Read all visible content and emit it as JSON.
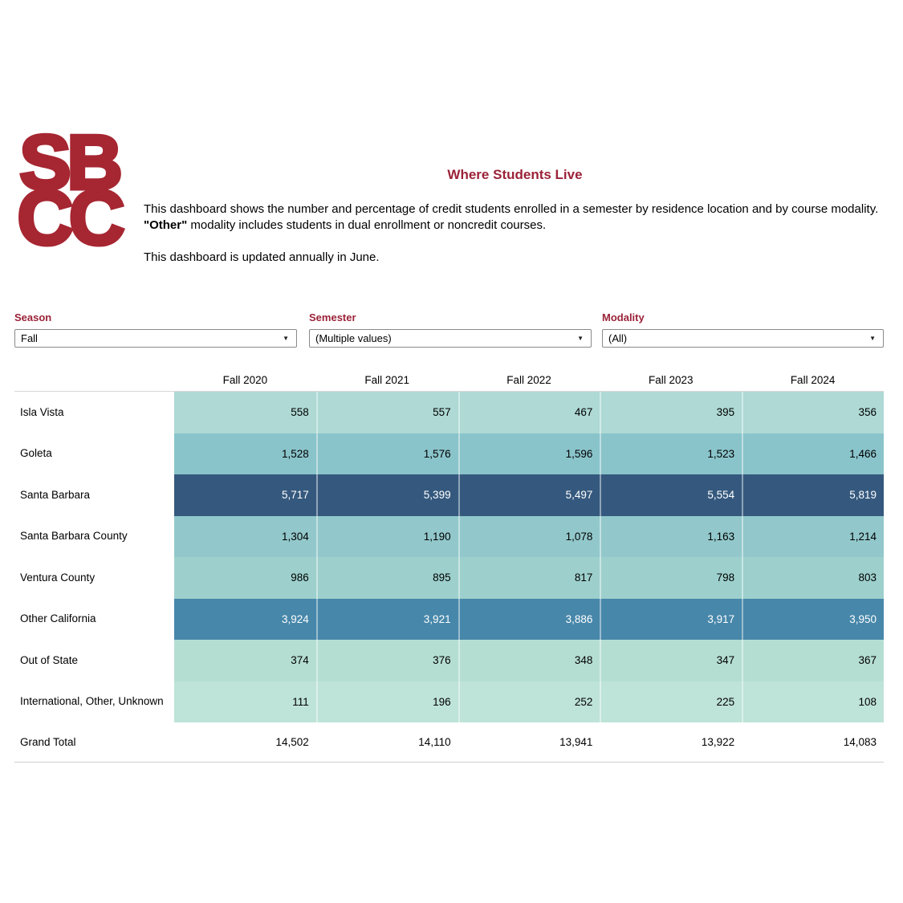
{
  "page": {
    "title": "Where Students Live"
  },
  "logo": {
    "line1": "SB",
    "line2": "CC",
    "color": "#a62631"
  },
  "description": {
    "p1_before": "This dashboard shows the number and percentage of credit students enrolled in a semester by residence location and by course modality.  ",
    "p1_bold": "\"Other\"",
    "p1_after": " modality includes students in dual enrollment or noncredit courses.",
    "p2": "This dashboard is updated annually in June."
  },
  "filters": {
    "season": {
      "label": "Season",
      "value": "Fall"
    },
    "semester": {
      "label": "Semester",
      "value": "(Multiple values)"
    },
    "modality": {
      "label": "Modality",
      "value": "(All)"
    },
    "dropdown_arrow": "▼"
  },
  "table": {
    "columns": [
      "Fall 2020",
      "Fall 2021",
      "Fall 2022",
      "Fall 2023",
      "Fall 2024"
    ],
    "rows": [
      {
        "label": "Isla Vista",
        "values": [
          "558",
          "557",
          "467",
          "395",
          "356"
        ],
        "style": "background-color:#aed9d5;color:#000000"
      },
      {
        "label": "Goleta",
        "values": [
          "1,528",
          "1,576",
          "1,596",
          "1,523",
          "1,466"
        ],
        "style": "background-color:#8ac4cb;color:#000000"
      },
      {
        "label": "Santa Barbara",
        "values": [
          "5,717",
          "5,399",
          "5,497",
          "5,554",
          "5,819"
        ],
        "style": "background-color:#35597e;color:#ffffff"
      },
      {
        "label": "Santa Barbara County",
        "values": [
          "1,304",
          "1,190",
          "1,078",
          "1,163",
          "1,214"
        ],
        "style": "background-color:#92c8cb;color:#000000"
      },
      {
        "label": "Ventura County",
        "values": [
          "986",
          "895",
          "817",
          "798",
          "803"
        ],
        "style": "background-color:#9dd0cd;color:#000000"
      },
      {
        "label": "Other California",
        "values": [
          "3,924",
          "3,921",
          "3,886",
          "3,917",
          "3,950"
        ],
        "style": "background-color:#4787aa;color:#ffffff"
      },
      {
        "label": "Out of State",
        "values": [
          "374",
          "376",
          "348",
          "347",
          "367"
        ],
        "style": "background-color:#b5ded3;color:#000000"
      },
      {
        "label": "International, Other, Unknown",
        "values": [
          "111",
          "196",
          "252",
          "225",
          "108"
        ],
        "style": "background-color:#bee3d8;color:#000000"
      }
    ],
    "grand_total": {
      "label": "Grand Total",
      "values": [
        "14,502",
        "14,110",
        "13,941",
        "13,922",
        "14,083"
      ]
    }
  },
  "chart_data": {
    "type": "table",
    "subtype": "highlight-table",
    "title": "Where Students Live",
    "columns": [
      "Fall 2020",
      "Fall 2021",
      "Fall 2022",
      "Fall 2023",
      "Fall 2024"
    ],
    "series": [
      {
        "name": "Isla Vista",
        "values": [
          558,
          557,
          467,
          395,
          356
        ]
      },
      {
        "name": "Goleta",
        "values": [
          1528,
          1576,
          1596,
          1523,
          1466
        ]
      },
      {
        "name": "Santa Barbara",
        "values": [
          5717,
          5399,
          5497,
          5554,
          5819
        ]
      },
      {
        "name": "Santa Barbara County",
        "values": [
          1304,
          1190,
          1078,
          1163,
          1214
        ]
      },
      {
        "name": "Ventura County",
        "values": [
          986,
          895,
          817,
          798,
          803
        ]
      },
      {
        "name": "Other California",
        "values": [
          3924,
          3921,
          3886,
          3917,
          3950
        ]
      },
      {
        "name": "Out of State",
        "values": [
          374,
          376,
          348,
          347,
          367
        ]
      },
      {
        "name": "International, Other, Unknown",
        "values": [
          111,
          196,
          252,
          225,
          108
        ]
      },
      {
        "name": "Grand Total",
        "values": [
          14502,
          14110,
          13941,
          13922,
          14083
        ]
      }
    ],
    "color_encoding": "cell background darkens from pale mint to dark blue as value increases"
  },
  "colors": {
    "accent_maroon": "#9b2238",
    "logo_red": "#a62631",
    "grid_line": "#d7d7d7",
    "dropdown_border": "#8a8a8a",
    "heatmap_scale": [
      "#bee3d8",
      "#b5ded3",
      "#aed9d5",
      "#9dd0cd",
      "#92c8cb",
      "#8ac4cb",
      "#4787aa",
      "#35597e"
    ]
  }
}
